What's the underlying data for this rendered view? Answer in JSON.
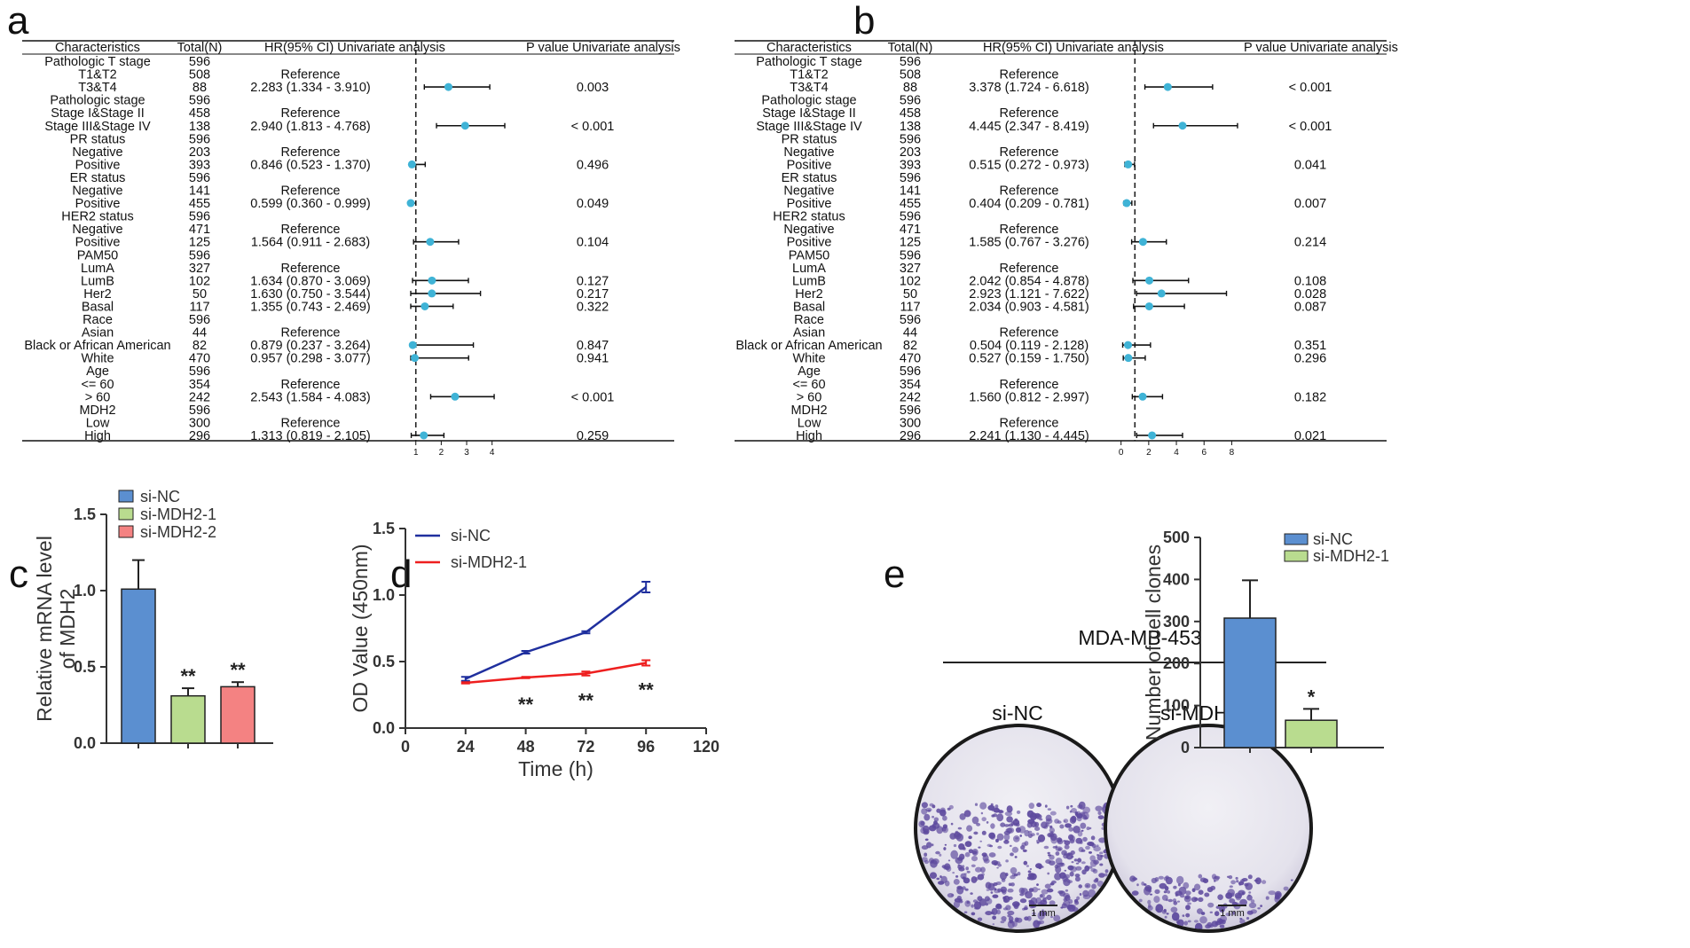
{
  "panels": {
    "a": "a",
    "b": "b",
    "c": "c",
    "d": "d",
    "e": "e"
  },
  "headers": {
    "characteristics": "Characteristics",
    "total": "Total(N)",
    "hr": "HR(95% CI) Univariate analysis",
    "p": "P value Univariate analysis"
  },
  "colors": {
    "marker": "#3fb3d6",
    "blue_bar": "#5b8fd0",
    "green_bar": "#b9dc8f",
    "red_bar": "#f48282",
    "line_blue": "#1f2f9e",
    "line_red": "#ee1f1f",
    "dish": "#e9e8f0",
    "colony": "#5e4a9e"
  },
  "forest_rows": [
    {
      "label": "Pathologic T stage",
      "n": "596"
    },
    {
      "label": "T1&T2",
      "n": "508"
    },
    {
      "label": "T3&T4",
      "n": "88"
    },
    {
      "label": "Pathologic stage",
      "n": "596"
    },
    {
      "label": "Stage I&Stage II",
      "n": "458"
    },
    {
      "label": "Stage III&Stage IV",
      "n": "138"
    },
    {
      "label": "PR status",
      "n": "596"
    },
    {
      "label": "Negative",
      "n": "203"
    },
    {
      "label": "Positive",
      "n": "393"
    },
    {
      "label": "ER status",
      "n": "596"
    },
    {
      "label": "Negative",
      "n": "141"
    },
    {
      "label": "Positive",
      "n": "455"
    },
    {
      "label": "HER2 status",
      "n": "596"
    },
    {
      "label": "Negative",
      "n": "471"
    },
    {
      "label": "Positive",
      "n": "125"
    },
    {
      "label": "PAM50",
      "n": "596"
    },
    {
      "label": "LumA",
      "n": "327"
    },
    {
      "label": "LumB",
      "n": "102"
    },
    {
      "label": "Her2",
      "n": "50"
    },
    {
      "label": "Basal",
      "n": "117"
    },
    {
      "label": "Race",
      "n": "596"
    },
    {
      "label": "Asian",
      "n": "44"
    },
    {
      "label": "Black or African American",
      "n": "82"
    },
    {
      "label": "White",
      "n": "470"
    },
    {
      "label": "Age",
      "n": "596"
    },
    {
      "label": "<= 60",
      "n": "354"
    },
    {
      "label": "> 60",
      "n": "242"
    },
    {
      "label": "MDH2",
      "n": "596"
    },
    {
      "label": "Low",
      "n": "300"
    },
    {
      "label": "High",
      "n": "296"
    }
  ],
  "chart_data": [
    {
      "type": "table",
      "panel": "a",
      "subtype": "forest",
      "null_line": 1,
      "xlim": [
        0.8,
        4.5
      ],
      "xticks": [
        1,
        2,
        3,
        4
      ],
      "rows": [
        {
          "hr": "",
          "p": ""
        },
        {
          "hr": "Reference",
          "p": ""
        },
        {
          "hr": "2.283 (1.334 - 3.910)",
          "p": "0.003",
          "est": 2.283,
          "lo": 1.334,
          "hi": 3.91
        },
        {
          "hr": "",
          "p": ""
        },
        {
          "hr": "Reference",
          "p": ""
        },
        {
          "hr": "2.940 (1.813 - 4.768)",
          "p": "< 0.001",
          "est": 2.94,
          "lo": 1.813,
          "hi": 4.768
        },
        {
          "hr": "",
          "p": ""
        },
        {
          "hr": "Reference",
          "p": ""
        },
        {
          "hr": "0.846 (0.523 - 1.370)",
          "p": "0.496",
          "est": 0.846,
          "lo": 0.523,
          "hi": 1.37
        },
        {
          "hr": "",
          "p": ""
        },
        {
          "hr": "Reference",
          "p": ""
        },
        {
          "hr": "0.599 (0.360 - 0.999)",
          "p": "0.049",
          "est": 0.599,
          "lo": 0.36,
          "hi": 0.999
        },
        {
          "hr": "",
          "p": ""
        },
        {
          "hr": "Reference",
          "p": ""
        },
        {
          "hr": "1.564 (0.911 - 2.683)",
          "p": "0.104",
          "est": 1.564,
          "lo": 0.911,
          "hi": 2.683
        },
        {
          "hr": "",
          "p": ""
        },
        {
          "hr": "Reference",
          "p": ""
        },
        {
          "hr": "1.634 (0.870 - 3.069)",
          "p": "0.127",
          "est": 1.634,
          "lo": 0.87,
          "hi": 3.069
        },
        {
          "hr": "1.630 (0.750 - 3.544)",
          "p": "0.217",
          "est": 1.63,
          "lo": 0.75,
          "hi": 3.544
        },
        {
          "hr": "1.355 (0.743 - 2.469)",
          "p": "0.322",
          "est": 1.355,
          "lo": 0.743,
          "hi": 2.469
        },
        {
          "hr": "",
          "p": ""
        },
        {
          "hr": "Reference",
          "p": ""
        },
        {
          "hr": "0.879 (0.237 - 3.264)",
          "p": "0.847",
          "est": 0.879,
          "lo": 0.237,
          "hi": 3.264
        },
        {
          "hr": "0.957 (0.298 - 3.077)",
          "p": "0.941",
          "est": 0.957,
          "lo": 0.298,
          "hi": 3.077
        },
        {
          "hr": "",
          "p": ""
        },
        {
          "hr": "Reference",
          "p": ""
        },
        {
          "hr": "2.543 (1.584 - 4.083)",
          "p": "< 0.001",
          "est": 2.543,
          "lo": 1.584,
          "hi": 4.083
        },
        {
          "hr": "",
          "p": ""
        },
        {
          "hr": "Reference",
          "p": ""
        },
        {
          "hr": "1.313 (0.819 - 2.105)",
          "p": "0.259",
          "est": 1.313,
          "lo": 0.819,
          "hi": 2.105
        }
      ]
    },
    {
      "type": "table",
      "panel": "b",
      "subtype": "forest",
      "null_line": 1,
      "xlim": [
        -0.3,
        9.0
      ],
      "xticks": [
        0,
        2,
        4,
        6,
        8
      ],
      "rows": [
        {
          "hr": "",
          "p": ""
        },
        {
          "hr": "Reference",
          "p": ""
        },
        {
          "hr": "3.378 (1.724 - 6.618)",
          "p": "< 0.001",
          "est": 3.378,
          "lo": 1.724,
          "hi": 6.618
        },
        {
          "hr": "",
          "p": ""
        },
        {
          "hr": "Reference",
          "p": ""
        },
        {
          "hr": "4.445 (2.347 - 8.419)",
          "p": "< 0.001",
          "est": 4.445,
          "lo": 2.347,
          "hi": 8.419
        },
        {
          "hr": "",
          "p": ""
        },
        {
          "hr": "Reference",
          "p": ""
        },
        {
          "hr": "0.515 (0.272 - 0.973)",
          "p": "0.041",
          "est": 0.515,
          "lo": 0.272,
          "hi": 0.973
        },
        {
          "hr": "",
          "p": ""
        },
        {
          "hr": "Reference",
          "p": ""
        },
        {
          "hr": "0.404 (0.209 - 0.781)",
          "p": "0.007",
          "est": 0.404,
          "lo": 0.209,
          "hi": 0.781
        },
        {
          "hr": "",
          "p": ""
        },
        {
          "hr": "Reference",
          "p": ""
        },
        {
          "hr": "1.585 (0.767 - 3.276)",
          "p": "0.214",
          "est": 1.585,
          "lo": 0.767,
          "hi": 3.276
        },
        {
          "hr": "",
          "p": ""
        },
        {
          "hr": "Reference",
          "p": ""
        },
        {
          "hr": "2.042 (0.854 - 4.878)",
          "p": "0.108",
          "est": 2.042,
          "lo": 0.854,
          "hi": 4.878
        },
        {
          "hr": "2.923 (1.121 - 7.622)",
          "p": "0.028",
          "est": 2.923,
          "lo": 1.121,
          "hi": 7.622
        },
        {
          "hr": "2.034 (0.903 - 4.581)",
          "p": "0.087",
          "est": 2.034,
          "lo": 0.903,
          "hi": 4.581
        },
        {
          "hr": "",
          "p": ""
        },
        {
          "hr": "Reference",
          "p": ""
        },
        {
          "hr": "0.504 (0.119 - 2.128)",
          "p": "0.351",
          "est": 0.504,
          "lo": 0.119,
          "hi": 2.128
        },
        {
          "hr": "0.527 (0.159 - 1.750)",
          "p": "0.296",
          "est": 0.527,
          "lo": 0.159,
          "hi": 1.75
        },
        {
          "hr": "",
          "p": ""
        },
        {
          "hr": "Reference",
          "p": ""
        },
        {
          "hr": "1.560 (0.812 - 2.997)",
          "p": "0.182",
          "est": 1.56,
          "lo": 0.812,
          "hi": 2.997
        },
        {
          "hr": "",
          "p": ""
        },
        {
          "hr": "Reference",
          "p": ""
        },
        {
          "hr": "2.241 (1.130 - 4.445)",
          "p": "0.021",
          "est": 2.241,
          "lo": 1.13,
          "hi": 4.445
        }
      ]
    },
    {
      "type": "bar",
      "panel": "c",
      "categories": [
        "si-NC",
        "si-MDH2-1",
        "si-MDH2-2"
      ],
      "values": [
        1.01,
        0.31,
        0.37
      ],
      "errors": [
        0.19,
        0.05,
        0.03
      ],
      "annotations": [
        "",
        "**",
        "**"
      ],
      "ylabel": "Relative mRNA level of MDH2",
      "ylabel_lines": [
        "Relative mRNA level",
        "of MDH2"
      ],
      "ylim": [
        0,
        1.5
      ],
      "yticks": [
        "0.0",
        "0.5",
        "1.0",
        "1.5"
      ],
      "legend": [
        "si-NC",
        "si-MDH2-1",
        "si-MDH2-2"
      ]
    },
    {
      "type": "line",
      "panel": "d",
      "x": [
        24,
        48,
        72,
        96
      ],
      "series": [
        {
          "name": "si-NC",
          "values": [
            0.37,
            0.57,
            0.72,
            1.06
          ],
          "errors": [
            0.015,
            0.01,
            0.008,
            0.04
          ]
        },
        {
          "name": "si-MDH2-1",
          "values": [
            0.34,
            0.38,
            0.41,
            0.49
          ],
          "errors": [
            0.005,
            0.005,
            0.015,
            0.02
          ]
        }
      ],
      "annotations": [
        {
          "x": 48,
          "text": "**"
        },
        {
          "x": 72,
          "text": "**"
        },
        {
          "x": 96,
          "text": "**"
        }
      ],
      "xlabel": "Time (h)",
      "ylabel": "OD Value (450nm)",
      "xlim": [
        0,
        120
      ],
      "ylim": [
        0,
        1.5
      ],
      "xticks": [
        "0",
        "24",
        "48",
        "72",
        "96",
        "120"
      ],
      "yticks": [
        "0.0",
        "0.5",
        "1.0",
        "1.5"
      ]
    },
    {
      "type": "bar",
      "panel": "e",
      "categories": [
        "si-NC",
        "si-MDH2-1"
      ],
      "values": [
        308,
        65
      ],
      "errors": [
        90,
        27
      ],
      "annotations": [
        "",
        "*"
      ],
      "ylabel": "Number of cell clones",
      "ylim": [
        0,
        500
      ],
      "yticks": [
        "0",
        "100",
        "200",
        "300",
        "400",
        "500"
      ],
      "legend": [
        "si-NC",
        "si-MDH2-1"
      ]
    }
  ],
  "colony_panel": {
    "cell_line": "MDA-MB-453",
    "labels": [
      "si-NC",
      "si-MDH2-1"
    ],
    "scale_bar": "1 mm",
    "relative_colony_density": [
      1.0,
      0.28
    ]
  }
}
